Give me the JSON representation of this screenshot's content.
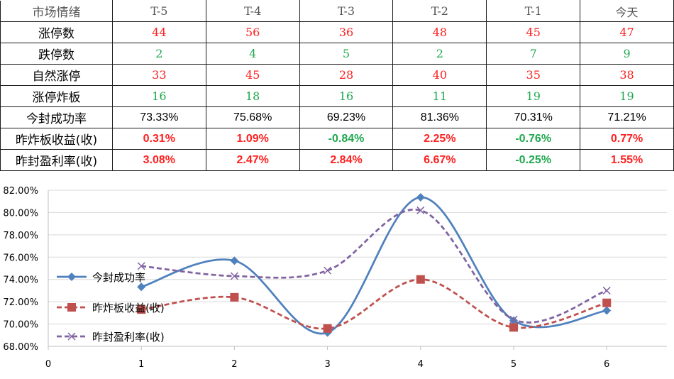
{
  "table": {
    "header_label": "市场情绪",
    "columns": [
      "T-5",
      "T-4",
      "T-3",
      "T-2",
      "T-1",
      "今天"
    ],
    "rows": [
      {
        "label": "涨停数",
        "values": [
          "44",
          "56",
          "36",
          "48",
          "45",
          "47"
        ],
        "colors": [
          "red",
          "red",
          "red",
          "red",
          "red",
          "red"
        ],
        "style": "num"
      },
      {
        "label": "跌停数",
        "values": [
          "2",
          "4",
          "5",
          "2",
          "7",
          "9"
        ],
        "colors": [
          "green",
          "green",
          "green",
          "green",
          "green",
          "green"
        ],
        "style": "num"
      },
      {
        "label": "自然涨停",
        "values": [
          "33",
          "45",
          "28",
          "40",
          "35",
          "38"
        ],
        "colors": [
          "red",
          "red",
          "red",
          "red",
          "red",
          "red"
        ],
        "style": "num"
      },
      {
        "label": "涨停炸板",
        "values": [
          "16",
          "18",
          "16",
          "11",
          "19",
          "19"
        ],
        "colors": [
          "green",
          "green",
          "green",
          "green",
          "green",
          "green"
        ],
        "style": "num"
      },
      {
        "label": "今封成功率",
        "values": [
          "73.33%",
          "75.68%",
          "69.23%",
          "81.36%",
          "70.31%",
          "71.21%"
        ],
        "colors": [
          "black",
          "black",
          "black",
          "black",
          "black",
          "black"
        ],
        "style": "pct"
      },
      {
        "label": "昨炸板收益(收)",
        "values": [
          "0.31%",
          "1.09%",
          "-0.84%",
          "2.25%",
          "-0.76%",
          "0.77%"
        ],
        "colors": [
          "red",
          "red",
          "green",
          "red",
          "green",
          "red"
        ],
        "style": "pct-bold"
      },
      {
        "label": "昨封盈利率(收)",
        "values": [
          "3.08%",
          "2.47%",
          "2.84%",
          "6.67%",
          "-0.25%",
          "1.55%"
        ],
        "colors": [
          "red",
          "red",
          "red",
          "red",
          "green",
          "red"
        ],
        "style": "pct-bold"
      }
    ]
  },
  "colors": {
    "red": "#ff2020",
    "green": "#1fa84f",
    "black": "#000000"
  },
  "chart_data": {
    "type": "line",
    "x": [
      1,
      2,
      3,
      4,
      5,
      6
    ],
    "xlim": [
      0,
      6
    ],
    "x_ticks": [
      "0",
      "1",
      "2",
      "3",
      "4",
      "5",
      "6"
    ],
    "ylim": [
      68,
      82
    ],
    "y_ticks": [
      "68.00%",
      "70.00%",
      "72.00%",
      "74.00%",
      "76.00%",
      "78.00%",
      "80.00%",
      "82.00%"
    ],
    "grid": true,
    "legend_position": "left",
    "smooth": true,
    "series": [
      {
        "name": "今封成功率",
        "values": [
          73.33,
          75.68,
          69.23,
          81.36,
          70.31,
          71.21
        ],
        "color": "#4f81bd",
        "marker": "diamond",
        "dash": "solid"
      },
      {
        "name": "昨炸板收益(收)",
        "values": [
          71.3,
          72.4,
          69.6,
          74.0,
          69.7,
          71.9
        ],
        "color": "#c0504d",
        "marker": "square",
        "dash": "dashed"
      },
      {
        "name": "昨封盈利率(收)",
        "values": [
          75.2,
          74.3,
          74.8,
          80.2,
          70.4,
          73.0
        ],
        "color": "#8064a2",
        "marker": "x",
        "dash": "dashed"
      }
    ]
  }
}
